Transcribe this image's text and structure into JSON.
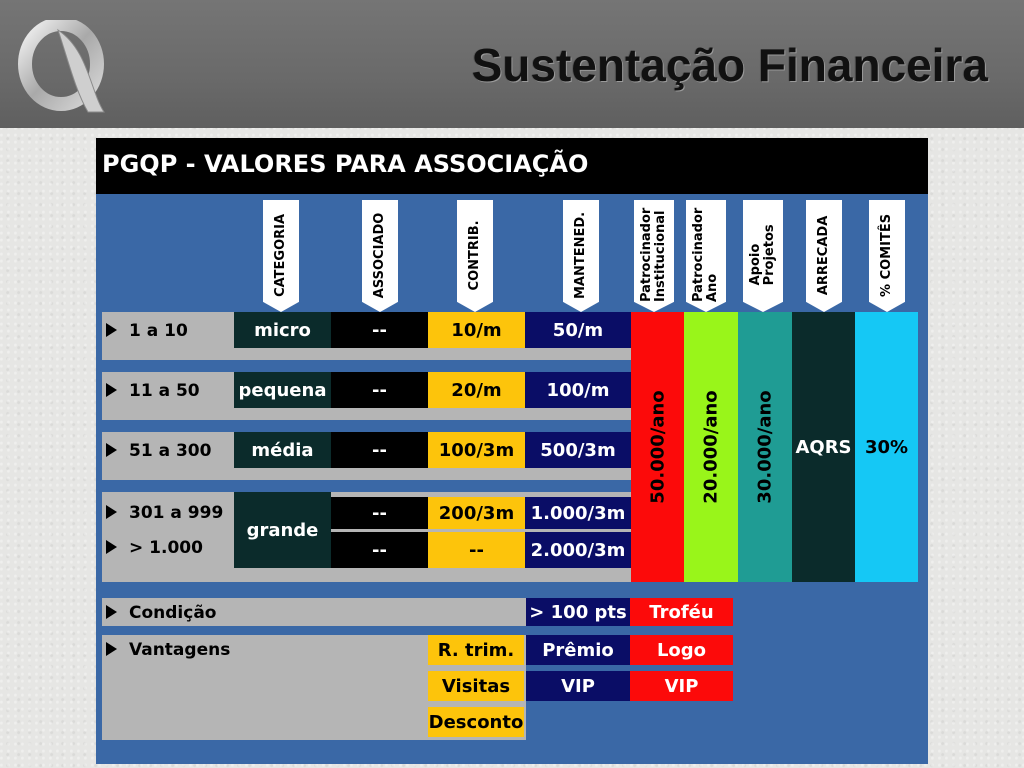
{
  "slide": {
    "title": "Sustentação Financeira",
    "logo_icon": "q-logo-icon"
  },
  "table": {
    "heading": "PGQP - VALORES PARA ASSOCIAÇÃO",
    "column_headers": {
      "categoria": "CATEGORIA",
      "associado": "ASSOCIADO",
      "contrib": "CONTRIB.",
      "mantened": "MANTENED.",
      "patrocinador_institucional": [
        "Patrocinador",
        "Institucional"
      ],
      "patrocinador_ano": [
        "Patrocinador",
        "Ano"
      ],
      "apoio_projetos": [
        "Apoio",
        "Projetos"
      ],
      "arrecada": "ARRECADA",
      "comites": "% COMITÊS"
    },
    "rows": [
      {
        "range": "1 a 10",
        "categoria": "micro",
        "associado": "--",
        "contrib": "10/m",
        "mantened": "50/m"
      },
      {
        "range": "11 a 50",
        "categoria": "pequena",
        "associado": "--",
        "contrib": "20/m",
        "mantened": "100/m"
      },
      {
        "range": "51 a 300",
        "categoria": "média",
        "associado": "--",
        "contrib": "100/3m",
        "mantened": "500/3m"
      },
      {
        "range": "301 a 999",
        "categoria": "grande",
        "associado": "--",
        "contrib": "200/3m",
        "mantened": "1.000/3m"
      },
      {
        "range": "> 1.000",
        "associado": "--",
        "contrib": "--",
        "mantened": "2.000/3m"
      }
    ],
    "vertical_values": {
      "patrocinador_institucional": "50.000/ano",
      "patrocinador_ano": "20.000/ano",
      "apoio_projetos": "30.000/ano",
      "arrecada": "AQRS",
      "comites": "30%"
    },
    "condicao": {
      "label": "Condição",
      "mantened": "> 100 pts",
      "patrocinador": "Troféu"
    },
    "vantagens": {
      "label": "Vantagens",
      "contrib": [
        "R. trim.",
        "Visitas",
        "Desconto"
      ],
      "mantened": [
        "Prêmio",
        "VIP"
      ],
      "patrocinador": [
        "Logo",
        "VIP"
      ]
    },
    "colors": {
      "panel_blue": "#3a68a6",
      "dark_teal": "#0b2b2b",
      "yellow": "#fdc40b",
      "navy": "#0a0d66",
      "red": "#fc0a0a",
      "lime": "#99f51a",
      "teal": "#1f9c94",
      "cyan": "#15c8f5",
      "gray_strip": "#b5b5b5"
    }
  }
}
